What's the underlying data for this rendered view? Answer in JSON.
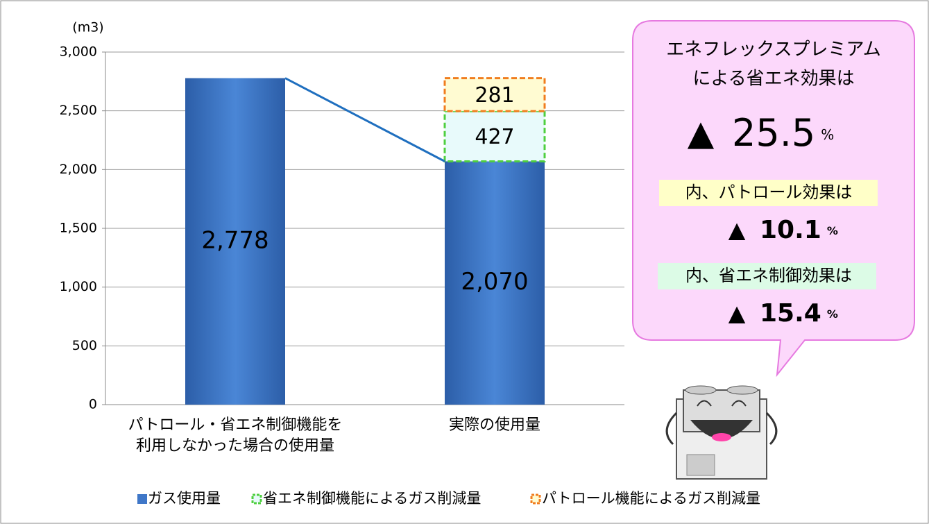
{
  "chart_data": {
    "type": "stacked-bar",
    "y_label": "(m3)",
    "categories": [
      "パトロール・省エネ制御機能を\n利用しなかった場合の使用量",
      "実際の使用量"
    ],
    "series": [
      {
        "name": "ガス使用量",
        "color": "#3f77c8",
        "fill": "#3f77c8",
        "values": [
          2778,
          2070
        ],
        "value_labels": [
          "2,778",
          "2,070"
        ]
      },
      {
        "name": "省エネ制御機能によるガス削減量",
        "color": "#4fcf3f",
        "fill": "#e8fafb",
        "values": [
          null,
          427
        ]
      },
      {
        "name": "パトロール機能によるガス削減量",
        "color": "#f07d1e",
        "fill": "#fffbd2",
        "values": [
          null,
          281
        ]
      }
    ],
    "ylim": [
      0,
      3000
    ],
    "yticks": [
      0,
      500,
      {
        "value": 1000,
        "label": "1,000"
      },
      {
        "value": 1500,
        "label": "1,500"
      },
      {
        "value": 2000,
        "label": "2,000"
      },
      {
        "value": 2500,
        "label": "2,500"
      },
      {
        "value": 3000,
        "label": "3,000"
      }
    ],
    "grid": true,
    "legend": "bottom",
    "callout": {
      "lines": [
        "エネフレックスプレミアム",
        "による省エネ効果は"
      ],
      "total": {
        "marker": "▲",
        "value": 25.5,
        "unit": "%"
      },
      "items": [
        {
          "label": "内、パトロール効果は",
          "marker": "▲",
          "value": 10.1,
          "unit": "%"
        },
        {
          "label": "内、省エネ制御効果は",
          "marker": "▲",
          "value": 15.4,
          "unit": "%"
        }
      ]
    }
  }
}
